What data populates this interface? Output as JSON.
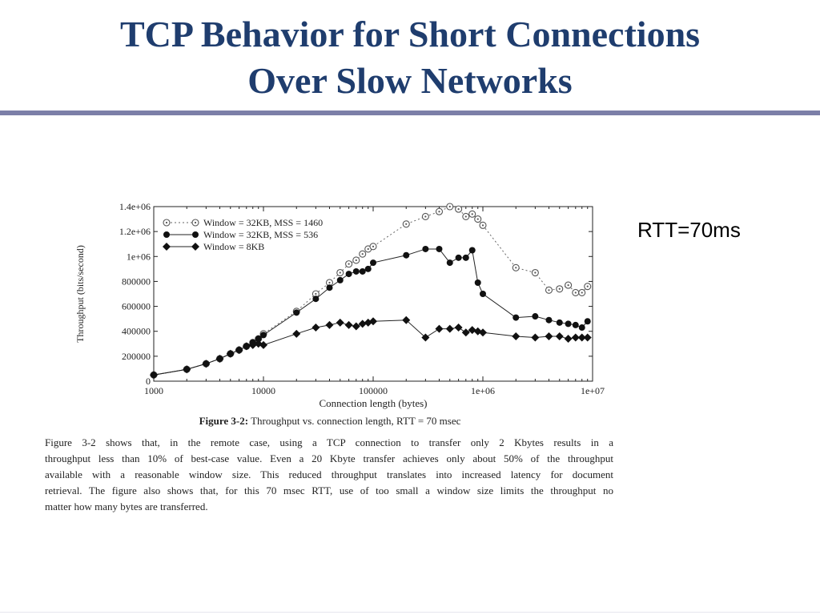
{
  "slide": {
    "title_line1": "TCP Behavior for Short Connections",
    "title_line2": "Over Slow Networks",
    "side_note": "RTT=70ms"
  },
  "figure": {
    "caption_label": "Figure 3-2:",
    "caption_text": "Throughput vs. connection length, RTT = 70 msec",
    "paragraph_lines": [
      "Figure 3-2 shows that, in the remote case, using a TCP connection to transfer only 2 Kbytes results in a",
      "throughput less than 10% of best-case value.  Even a 20 Kbyte transfer achieves only about 50% of the throughput",
      "available with a reasonable window size.  This reduced throughput translates into increased latency for document",
      "retrieval.  The figure also shows that, for this 70 msec RTT, use of too small a window size limits the throughput no",
      "matter how many bytes are transferred."
    ]
  },
  "chart_data": {
    "type": "scatter",
    "xlabel": "Connection length (bytes)",
    "ylabel": "Throughput (bits/second)",
    "x_scale": "log",
    "xlim": [
      1000,
      10000000
    ],
    "ylim": [
      0,
      1400000
    ],
    "x_ticks": [
      "1000",
      "10000",
      "100000",
      "1e+06",
      "1e+07"
    ],
    "y_ticks": [
      "0",
      "200000",
      "400000",
      "600000",
      "800000",
      "1e+06",
      "1.2e+06",
      "1.4e+06"
    ],
    "legend_position": "top-left",
    "series": [
      {
        "name": "Window = 32KB, MSS = 1460",
        "marker": "open-circle",
        "line": "dotted",
        "x": [
          1000,
          2000,
          3000,
          4000,
          5000,
          6000,
          7000,
          8000,
          9000,
          10000,
          20000,
          30000,
          40000,
          50000,
          60000,
          70000,
          80000,
          90000,
          100000,
          200000,
          300000,
          400000,
          500000,
          600000,
          700000,
          800000,
          900000,
          1000000,
          2000000,
          3000000,
          4000000,
          5000000,
          6000000,
          7000000,
          8000000,
          9000000
        ],
        "y": [
          50000,
          95000,
          140000,
          180000,
          220000,
          250000,
          280000,
          310000,
          340000,
          380000,
          560000,
          700000,
          790000,
          870000,
          940000,
          970000,
          1020000,
          1060000,
          1080000,
          1260000,
          1320000,
          1360000,
          1400000,
          1380000,
          1320000,
          1340000,
          1300000,
          1250000,
          910000,
          870000,
          730000,
          740000,
          770000,
          710000,
          710000,
          760000
        ]
      },
      {
        "name": "Window = 32KB, MSS = 536",
        "marker": "filled-circle",
        "line": "solid",
        "x": [
          1000,
          2000,
          3000,
          4000,
          5000,
          6000,
          7000,
          8000,
          9000,
          10000,
          20000,
          30000,
          40000,
          50000,
          60000,
          70000,
          80000,
          90000,
          100000,
          200000,
          300000,
          400000,
          500000,
          600000,
          700000,
          800000,
          900000,
          1000000,
          2000000,
          3000000,
          4000000,
          5000000,
          6000000,
          7000000,
          8000000,
          9000000
        ],
        "y": [
          50000,
          95000,
          140000,
          180000,
          220000,
          250000,
          280000,
          310000,
          340000,
          370000,
          550000,
          660000,
          750000,
          810000,
          860000,
          880000,
          880000,
          900000,
          950000,
          1010000,
          1060000,
          1060000,
          950000,
          990000,
          990000,
          1050000,
          790000,
          700000,
          510000,
          520000,
          490000,
          470000,
          460000,
          450000,
          430000,
          480000
        ]
      },
      {
        "name": "Window = 8KB",
        "marker": "filled-diamond",
        "line": "solid",
        "x": [
          1000,
          2000,
          3000,
          4000,
          5000,
          6000,
          7000,
          8000,
          9000,
          10000,
          20000,
          30000,
          40000,
          50000,
          60000,
          70000,
          80000,
          90000,
          100000,
          200000,
          300000,
          400000,
          500000,
          600000,
          700000,
          800000,
          900000,
          1000000,
          2000000,
          3000000,
          4000000,
          5000000,
          6000000,
          7000000,
          8000000,
          9000000
        ],
        "y": [
          50000,
          95000,
          140000,
          180000,
          220000,
          250000,
          280000,
          290000,
          300000,
          290000,
          380000,
          430000,
          450000,
          470000,
          450000,
          440000,
          460000,
          470000,
          480000,
          490000,
          350000,
          420000,
          420000,
          430000,
          390000,
          410000,
          400000,
          390000,
          360000,
          350000,
          360000,
          360000,
          340000,
          350000,
          350000,
          350000
        ]
      }
    ]
  }
}
